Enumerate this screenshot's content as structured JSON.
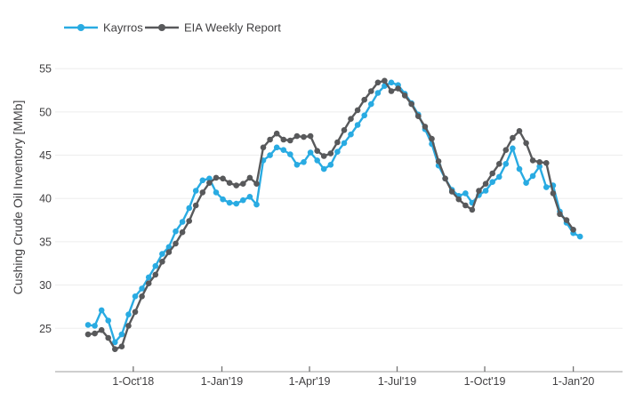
{
  "chart_data": {
    "type": "line",
    "title": "",
    "xlabel": "",
    "ylabel": "Cushing Crude Oil Inventory [MMb]",
    "ylim": [
      20,
      57
    ],
    "yticks": [
      25,
      30,
      35,
      40,
      45,
      50,
      55
    ],
    "xtick_labels": [
      "1-Oct'18",
      "1-Jan'19",
      "1-Apr'19",
      "1-Jul'19",
      "1-Oct'19",
      "1-Jan'20"
    ],
    "grid": "horizontal",
    "legend_position": "top-left",
    "x_dates": [
      "2018-08-15",
      "2018-08-22",
      "2018-08-29",
      "2018-09-05",
      "2018-09-12",
      "2018-09-19",
      "2018-09-26",
      "2018-10-03",
      "2018-10-10",
      "2018-10-17",
      "2018-10-24",
      "2018-10-31",
      "2018-11-07",
      "2018-11-14",
      "2018-11-21",
      "2018-11-28",
      "2018-12-05",
      "2018-12-12",
      "2018-12-19",
      "2018-12-26",
      "2019-01-02",
      "2019-01-09",
      "2019-01-16",
      "2019-01-23",
      "2019-01-30",
      "2019-02-06",
      "2019-02-13",
      "2019-02-20",
      "2019-02-27",
      "2019-03-06",
      "2019-03-13",
      "2019-03-20",
      "2019-03-27",
      "2019-04-03",
      "2019-04-10",
      "2019-04-17",
      "2019-04-24",
      "2019-05-01",
      "2019-05-08",
      "2019-05-15",
      "2019-05-22",
      "2019-05-29",
      "2019-06-05",
      "2019-06-12",
      "2019-06-19",
      "2019-06-26",
      "2019-07-03",
      "2019-07-10",
      "2019-07-17",
      "2019-07-24",
      "2019-07-31",
      "2019-08-07",
      "2019-08-14",
      "2019-08-21",
      "2019-08-28",
      "2019-09-04",
      "2019-09-11",
      "2019-09-18",
      "2019-09-25",
      "2019-10-02",
      "2019-10-09",
      "2019-10-16",
      "2019-10-23",
      "2019-10-30",
      "2019-11-06",
      "2019-11-13",
      "2019-11-20",
      "2019-11-27",
      "2019-12-04",
      "2019-12-11",
      "2019-12-18",
      "2019-12-25",
      "2020-01-01",
      "2020-01-08"
    ],
    "series": [
      {
        "name": "Kayrros",
        "color": "#29abe2",
        "values": [
          25.4,
          25.3,
          27.1,
          25.9,
          23.4,
          24.3,
          26.6,
          28.7,
          29.6,
          30.9,
          32.2,
          33.6,
          34.4,
          36.2,
          37.3,
          38.9,
          40.9,
          42.1,
          42.3,
          40.7,
          39.9,
          39.5,
          39.4,
          39.8,
          40.2,
          39.3,
          44.4,
          45.0,
          45.9,
          45.6,
          45.1,
          43.9,
          44.2,
          45.3,
          44.4,
          43.4,
          43.9,
          45.4,
          46.4,
          47.4,
          48.5,
          49.6,
          50.9,
          52.2,
          53.0,
          53.4,
          53.1,
          52.1,
          51.0,
          49.7,
          48.0,
          46.3,
          43.8,
          42.3,
          41.0,
          40.3,
          40.6,
          39.5,
          40.4,
          40.9,
          41.9,
          42.5,
          44.0,
          45.8,
          43.4,
          41.8,
          42.6,
          43.7,
          41.3,
          41.5,
          38.5,
          37.2,
          36.0,
          35.6
        ]
      },
      {
        "name": "EIA Weekly Report",
        "color": "#58595b",
        "values": [
          24.3,
          24.4,
          24.8,
          23.9,
          22.6,
          22.9,
          25.3,
          26.9,
          28.7,
          30.2,
          31.2,
          32.7,
          33.8,
          34.8,
          36.1,
          37.4,
          39.2,
          40.7,
          41.8,
          42.4,
          42.3,
          41.8,
          41.5,
          41.7,
          42.4,
          41.7,
          45.9,
          46.8,
          47.5,
          46.8,
          46.7,
          47.2,
          47.1,
          47.2,
          45.5,
          44.9,
          45.2,
          46.5,
          47.9,
          49.2,
          50.2,
          51.4,
          52.4,
          53.4,
          53.6,
          52.4,
          52.7,
          51.9,
          50.9,
          49.5,
          48.3,
          46.9,
          44.3,
          42.3,
          40.8,
          39.9,
          39.2,
          38.7,
          40.9,
          41.7,
          42.9,
          44.0,
          45.6,
          47.0,
          47.8,
          46.4,
          44.4,
          44.2,
          44.1,
          40.6,
          38.2,
          37.5,
          36.4
        ]
      }
    ],
    "colors": {
      "grid": "#ededed",
      "axis_line": "#b1b1b1",
      "tick_mark": "#757575",
      "tick_text": "#414042",
      "axis_label_text": "#414042"
    }
  },
  "legend": {
    "items": [
      {
        "label": "Kayrros",
        "color": "#29abe2"
      },
      {
        "label": "EIA Weekly Report",
        "color": "#58595b"
      }
    ]
  }
}
